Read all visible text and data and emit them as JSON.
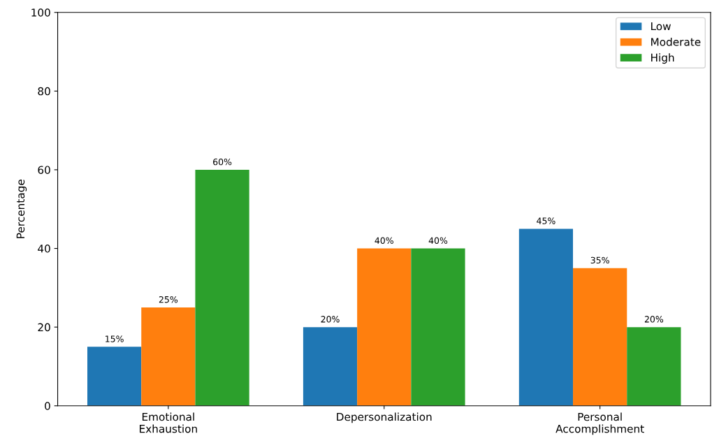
{
  "chart_data": {
    "type": "bar",
    "ylabel": "Percentage",
    "categories": [
      "Emotional\nExhaustion",
      "Depersonalization",
      "Personal\nAccomplishment"
    ],
    "series": [
      {
        "name": "Low",
        "color": "#1f77b4",
        "values": [
          15,
          20,
          45
        ],
        "value_labels": [
          "15%",
          "20%",
          "45%"
        ]
      },
      {
        "name": "Moderate",
        "color": "#ff7f0e",
        "values": [
          25,
          40,
          35
        ],
        "value_labels": [
          "25%",
          "40%",
          "35%"
        ]
      },
      {
        "name": "High",
        "color": "#2ca02c",
        "values": [
          60,
          40,
          20
        ],
        "value_labels": [
          "60%",
          "40%",
          "20%"
        ]
      }
    ],
    "ylim": [
      0,
      100
    ],
    "yticks": [
      0,
      20,
      40,
      60,
      80,
      100
    ],
    "legend": "top right",
    "grid": false
  }
}
